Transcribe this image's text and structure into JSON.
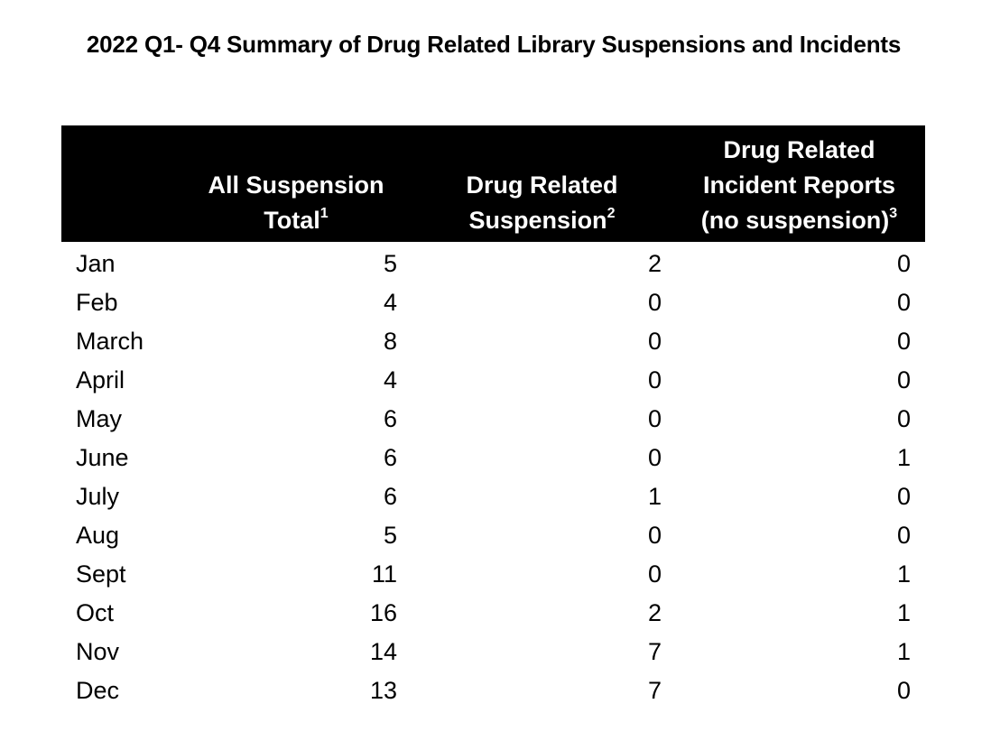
{
  "title": "2022 Q1- Q4 Summary of Drug Related Library Suspensions and Incidents",
  "columns": [
    {
      "lines": [
        "All Suspension",
        "Total"
      ],
      "footnote": "1"
    },
    {
      "lines": [
        "Drug Related",
        "Suspension"
      ],
      "footnote": "2"
    },
    {
      "lines": [
        "Drug Related",
        "Incident Reports",
        "(no suspension)"
      ],
      "footnote": "3"
    }
  ],
  "rows": [
    {
      "month": "Jan",
      "all": "5",
      "drug_susp": "2",
      "incident": "0"
    },
    {
      "month": "Feb",
      "all": "4",
      "drug_susp": "0",
      "incident": "0"
    },
    {
      "month": "March",
      "all": "8",
      "drug_susp": "0",
      "incident": "0"
    },
    {
      "month": "April",
      "all": "4",
      "drug_susp": "0",
      "incident": "0"
    },
    {
      "month": "May",
      "all": "6",
      "drug_susp": "0",
      "incident": "0"
    },
    {
      "month": "June",
      "all": "6",
      "drug_susp": "0",
      "incident": "1"
    },
    {
      "month": "July",
      "all": "6",
      "drug_susp": "1",
      "incident": "0"
    },
    {
      "month": "Aug",
      "all": "5",
      "drug_susp": "0",
      "incident": "0"
    },
    {
      "month": "Sept",
      "all": "11",
      "drug_susp": "0",
      "incident": "1"
    },
    {
      "month": "Oct",
      "all": "16",
      "drug_susp": "2",
      "incident": "1"
    },
    {
      "month": "Nov",
      "all": "14",
      "drug_susp": "7",
      "incident": "1"
    },
    {
      "month": "Dec",
      "all": "13",
      "drug_susp": "7",
      "incident": "0"
    }
  ]
}
